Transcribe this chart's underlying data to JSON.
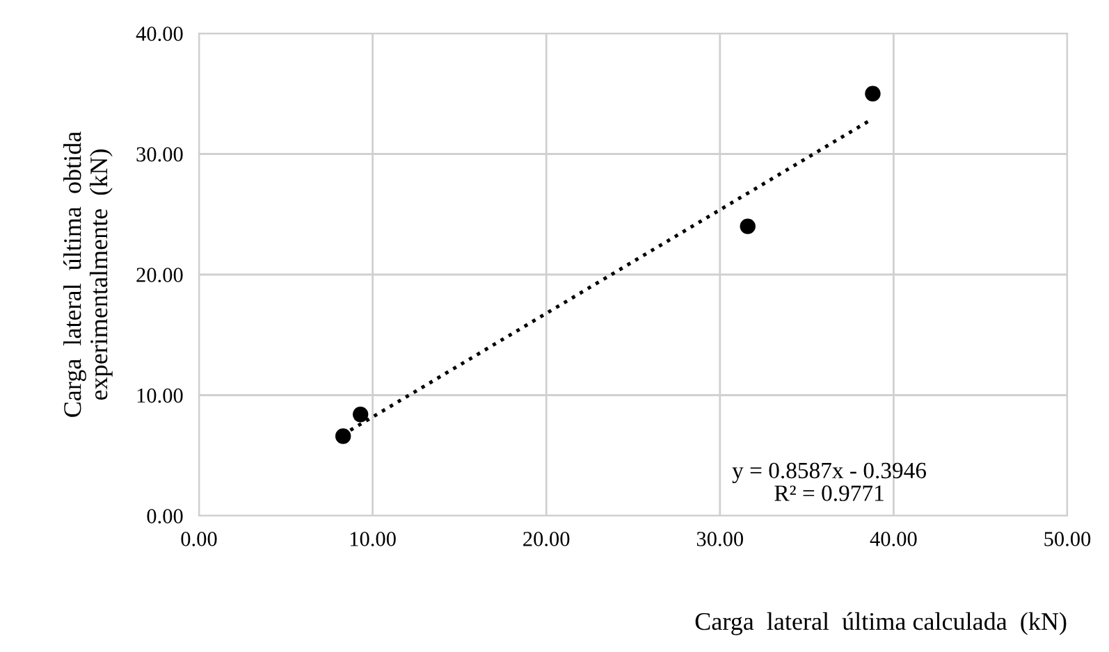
{
  "chart_data": {
    "type": "scatter",
    "xlabel": "Carga  lateral  última calculada  (kN)",
    "ylabel": "Carga  lateral  última  obtida\nexperimentalmente  (kN)",
    "xlim": [
      0,
      50
    ],
    "ylim": [
      0,
      40
    ],
    "xticks": [
      {
        "value": 0,
        "label": "0.00"
      },
      {
        "value": 10,
        "label": "10.00"
      },
      {
        "value": 20,
        "label": "20.00"
      },
      {
        "value": 30,
        "label": "30.00"
      },
      {
        "value": 40,
        "label": "40.00"
      },
      {
        "value": 50,
        "label": "50.00"
      }
    ],
    "yticks": [
      {
        "value": 0,
        "label": "0.00"
      },
      {
        "value": 10,
        "label": "10.00"
      },
      {
        "value": 20,
        "label": "20.00"
      },
      {
        "value": 30,
        "label": "30.00"
      },
      {
        "value": 40,
        "label": "40.00"
      }
    ],
    "grid": true,
    "legend": false,
    "marker": "circle",
    "series": [
      {
        "color": "#000000",
        "x": [
          8.3,
          9.3,
          31.6,
          38.8
        ],
        "values": [
          6.6,
          8.4,
          24.0,
          35.0
        ]
      },
      {
        "type": "line",
        "color": "#000000",
        "line_style": "dotted",
        "marker": "none",
        "x": [
          8.26,
          38.77
        ],
        "values": [
          6.7,
          32.9
        ]
      }
    ],
    "annotations": [
      "y = 0.8587x - 0.3946\nR² = 0.9771"
    ]
  }
}
